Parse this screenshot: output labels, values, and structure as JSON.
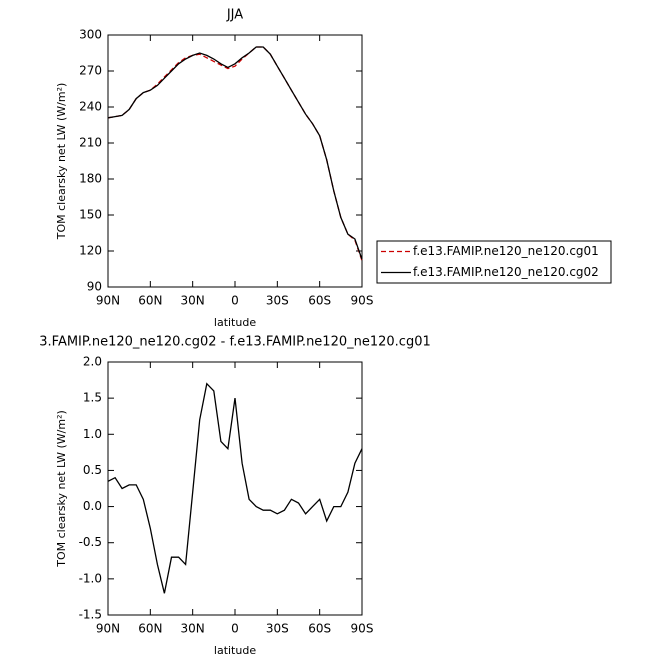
{
  "chart_data": [
    {
      "type": "line",
      "title": "JJA",
      "xlabel": "latitude",
      "ylabel": "TOM clearsky net LW (W/m²)",
      "x": [
        90,
        85,
        80,
        75,
        70,
        65,
        60,
        55,
        50,
        45,
        40,
        35,
        30,
        25,
        20,
        15,
        10,
        5,
        0,
        -5,
        -10,
        -15,
        -20,
        -25,
        -30,
        -35,
        -40,
        -45,
        -50,
        -55,
        -60,
        -65,
        -70,
        -75,
        -80,
        -85,
        -90
      ],
      "xlim": [
        90,
        -90
      ],
      "xticks": [
        {
          "value": 90,
          "label": "90N"
        },
        {
          "value": 60,
          "label": "60N"
        },
        {
          "value": 30,
          "label": "30N"
        },
        0,
        {
          "value": -30,
          "label": "30S"
        },
        {
          "value": -60,
          "label": "60S"
        },
        {
          "value": -90,
          "label": "90S"
        }
      ],
      "ylim": [
        90,
        300
      ],
      "yticks": [
        90,
        120,
        150,
        180,
        210,
        240,
        270,
        300
      ],
      "legend_position": "right",
      "series": [
        {
          "name": "f.e13.FAMIP.ne120_ne120.cg01",
          "color": "#cc0000",
          "dashed": true,
          "values": [
            231,
            232,
            233,
            238,
            247,
            252,
            254,
            259,
            265,
            271,
            277,
            281,
            283,
            284,
            281,
            278,
            275,
            272,
            274,
            280,
            285,
            290,
            290,
            284,
            274,
            264,
            254,
            244,
            234,
            226,
            216,
            196,
            170,
            148,
            134,
            129,
            112
          ]
        },
        {
          "name": "f.e13.FAMIP.ne120_ne120.cg02",
          "color": "#000000",
          "dashed": false,
          "values": [
            231,
            232,
            233,
            238,
            247,
            252,
            254,
            258,
            264,
            270,
            276,
            280,
            283,
            285,
            283,
            280,
            276,
            273,
            276,
            281,
            285,
            290,
            290,
            284,
            274,
            264,
            254,
            244,
            234,
            226,
            216,
            196,
            170,
            148,
            134,
            130,
            113
          ]
        }
      ]
    },
    {
      "type": "line",
      "title": "3.FAMIP.ne120_ne120.cg02 - f.e13.FAMIP.ne120_ne120.cg01",
      "xlabel": "latitude",
      "ylabel": "TOM clearsky net LW (W/m²)",
      "x": [
        90,
        85,
        80,
        75,
        70,
        65,
        60,
        55,
        50,
        45,
        40,
        35,
        30,
        25,
        20,
        15,
        10,
        5,
        0,
        -5,
        -10,
        -15,
        -20,
        -25,
        -30,
        -35,
        -40,
        -45,
        -50,
        -55,
        -60,
        -65,
        -70,
        -75,
        -80,
        -85,
        -90
      ],
      "xlim": [
        90,
        -90
      ],
      "xticks": [
        {
          "value": 90,
          "label": "90N"
        },
        {
          "value": 60,
          "label": "60N"
        },
        {
          "value": 30,
          "label": "30N"
        },
        0,
        {
          "value": -30,
          "label": "30S"
        },
        {
          "value": -60,
          "label": "60S"
        },
        {
          "value": -90,
          "label": "90S"
        }
      ],
      "ylim": [
        -1.5,
        2.0
      ],
      "yticks": [
        -1.5,
        {
          "value": -1,
          "label": "-1.0"
        },
        -0.5,
        {
          "value": 0,
          "label": "0.0"
        },
        0.5,
        {
          "value": 1,
          "label": "1.0"
        },
        1.5,
        {
          "value": 2,
          "label": "2.0"
        }
      ],
      "series": [
        {
          "color": "#000000",
          "dashed": false,
          "values": [
            0.35,
            0.4,
            0.25,
            0.3,
            0.3,
            0.1,
            -0.3,
            -0.8,
            -1.2,
            -0.7,
            -0.7,
            -0.8,
            0.2,
            1.2,
            1.7,
            1.6,
            0.9,
            0.8,
            1.5,
            0.6,
            0.1,
            0.0,
            -0.05,
            -0.05,
            -0.1,
            -0.05,
            0.1,
            0.05,
            -0.1,
            0.0,
            0.1,
            -0.2,
            0.0,
            0.0,
            0.2,
            0.6,
            0.8
          ]
        }
      ]
    }
  ]
}
